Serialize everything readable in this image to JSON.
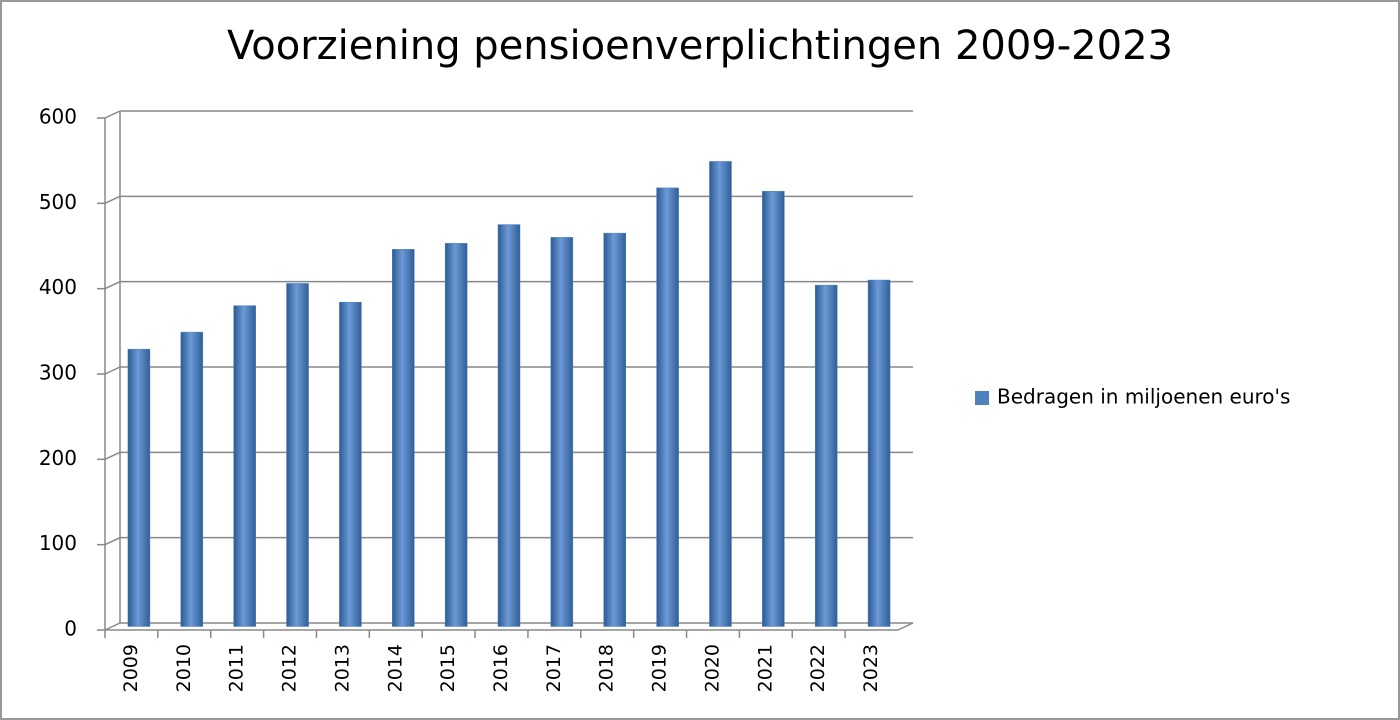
{
  "chart_data": {
    "type": "bar",
    "title": "Voorziening pensioenverplichtingen 2009-2023",
    "categories": [
      "2009",
      "2010",
      "2011",
      "2012",
      "2013",
      "2014",
      "2015",
      "2016",
      "2017",
      "2018",
      "2019",
      "2020",
      "2021",
      "2022",
      "2023"
    ],
    "series": [
      {
        "name": "Bedragen in miljoenen euro's",
        "color": "#4f81bd",
        "values": [
          325,
          345,
          376,
          402,
          380,
          442,
          449,
          471,
          456,
          461,
          514,
          545,
          510,
          400,
          406
        ]
      }
    ],
    "ylim": [
      0,
      600
    ],
    "yticks": [
      0,
      100,
      200,
      300,
      400,
      500,
      600
    ],
    "grid": true,
    "legend": "right"
  }
}
